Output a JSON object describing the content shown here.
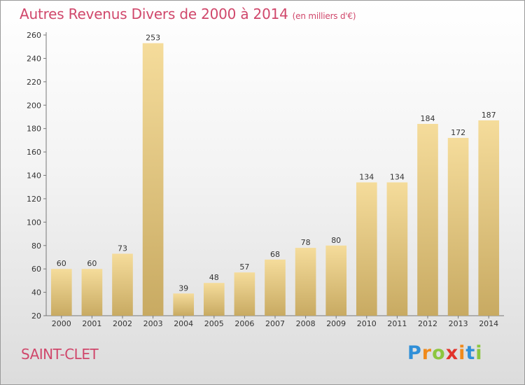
{
  "chart_data": {
    "type": "bar",
    "title": "Autres Revenus Divers de 2000 à 2014",
    "subtitle": "(en milliers d'€)",
    "categories": [
      "2000",
      "2001",
      "2002",
      "2003",
      "2004",
      "2005",
      "2006",
      "2007",
      "2008",
      "2009",
      "2010",
      "2011",
      "2012",
      "2013",
      "2014"
    ],
    "values": [
      60,
      60,
      73,
      253,
      39,
      48,
      57,
      68,
      78,
      80,
      134,
      134,
      184,
      172,
      187
    ],
    "ylim": [
      20,
      260
    ],
    "yticks": [
      20,
      40,
      60,
      80,
      100,
      120,
      140,
      160,
      180,
      200,
      220,
      240,
      260
    ],
    "grid": false,
    "bar_color_light": "#f5dc9b",
    "bar_color_dark": "#c8aa62"
  },
  "footer": {
    "place": "SAINT-CLET",
    "logo_letters": [
      {
        "ch": "P",
        "color": "#2f8fd8"
      },
      {
        "ch": "r",
        "color": "#f08a1c"
      },
      {
        "ch": "o",
        "color": "#8cc63f"
      },
      {
        "ch": "x",
        "color": "#e2332b"
      },
      {
        "ch": "i",
        "color": "#f08a1c"
      },
      {
        "ch": "t",
        "color": "#2f8fd8"
      },
      {
        "ch": "i",
        "color": "#8cc63f"
      }
    ]
  },
  "colors": {
    "title": "#d0476b",
    "axis": "#777777"
  }
}
